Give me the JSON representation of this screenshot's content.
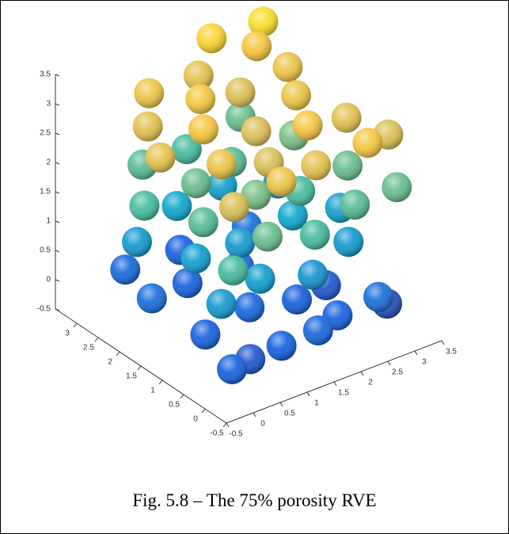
{
  "chart_data": {
    "type": "scatter3d",
    "caption": "Fig. 5.8 – The 75% porosity RVE",
    "x": [
      0,
      0.5,
      1,
      1.6,
      2.2,
      2.8,
      3.2,
      0.3,
      1.2,
      2,
      2.7,
      0.1,
      1,
      1.8,
      0.4,
      1.5,
      2.5,
      0.2,
      1,
      1.9,
      2.8,
      0.6,
      1.5,
      2.4,
      3.2,
      0.3,
      1.2,
      2.2,
      3,
      0.1,
      0.9,
      1.7,
      2.6,
      3.3,
      0.5,
      1.4,
      2.3,
      3.1,
      0.2,
      1,
      1.9,
      2.9,
      0.8,
      1.7,
      2.7,
      0.2,
      1,
      1.8,
      2.6,
      3.3,
      0.6,
      1.4,
      2.2,
      3,
      0.1,
      0.9,
      1.8,
      2.7,
      0.5,
      1.4,
      2.3,
      3.1,
      1,
      2,
      3,
      3.2,
      2.4
    ],
    "y": [
      0,
      0.2,
      0.1,
      0,
      0.3,
      0.1,
      0.4,
      1,
      1.1,
      1,
      1.2,
      2,
      2.3,
      2.1,
      3,
      3.1,
      2.8,
      0.5,
      0.6,
      0.5,
      0.8,
      1.6,
      1.7,
      1.6,
      1.5,
      2.6,
      2.8,
      3,
      2.7,
      0.1,
      0.3,
      0.2,
      0.4,
      0.3,
      1.3,
      1.2,
      1.3,
      1.2,
      2.3,
      2.1,
      2.4,
      2.2,
      3.1,
      3.2,
      3.2,
      0.2,
      0.1,
      0.3,
      0.1,
      0.5,
      1,
      0.9,
      1,
      1.1,
      1.8,
      1.8,
      1.7,
      1.9,
      2.6,
      2.5,
      2.7,
      2.6,
      3.2,
      3.3,
      3.2,
      3.3,
      3.5
    ],
    "z": [
      0,
      -0.1,
      0,
      0.1,
      0,
      0.2,
      -0.2,
      0,
      0.1,
      0,
      -0.1,
      0.2,
      0,
      0.1,
      0.1,
      0,
      0.2,
      0.8,
      0.9,
      0.7,
      0.8,
      0.9,
      0.8,
      1,
      0.9,
      0.8,
      1,
      0.9,
      0.8,
      1.6,
      1.8,
      1.6,
      1.7,
      1.8,
      1.7,
      1.9,
      1.6,
      1.8,
      1.6,
      1.8,
      1.7,
      1.9,
      1.7,
      1.6,
      1.8,
      2.6,
      2.8,
      2.7,
      2.9,
      2.6,
      2.8,
      2.6,
      2.9,
      2.7,
      2.7,
      2.9,
      2.6,
      2.8,
      2.7,
      2.9,
      2.6,
      2.8,
      2.8,
      2.7,
      2.9,
      3.2,
      3.1
    ],
    "xlim": [
      -0.5,
      3.5
    ],
    "ylim": [
      -0.5,
      3.5
    ],
    "zlim": [
      -0.5,
      3.5
    ],
    "xticks": [
      -0.5,
      0,
      0.5,
      1,
      1.5,
      2,
      2.5,
      3,
      3.5
    ],
    "yticks": [
      -0.5,
      0,
      0.5,
      1,
      1.5,
      2,
      2.5,
      3
    ],
    "zticks": [
      -0.5,
      0,
      0.5,
      1,
      1.5,
      2,
      2.5,
      3,
      3.5
    ],
    "colormap": [
      "#352a87",
      "#0f5cdd",
      "#1481d6",
      "#06a4ca",
      "#2eb7a4",
      "#87bf77",
      "#d1bb59",
      "#fec832",
      "#f9fb0e"
    ]
  }
}
